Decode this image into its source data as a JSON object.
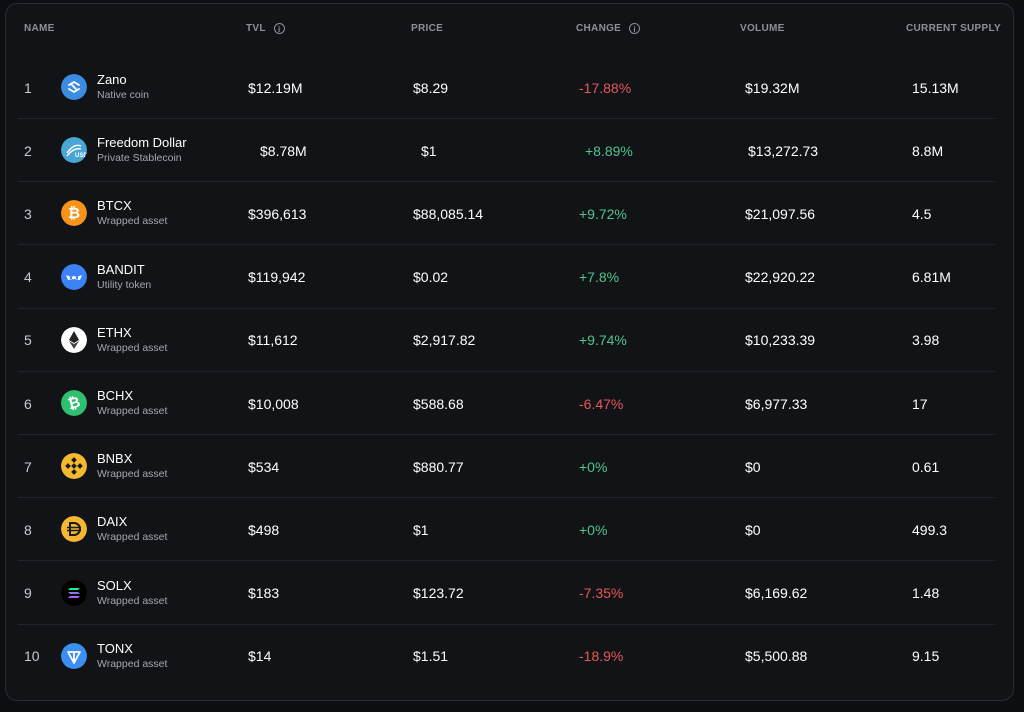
{
  "header": {
    "name": "NAME",
    "tvl": "TVL",
    "price": "PRICE",
    "change": "CHANGE",
    "volume": "VOLUME",
    "supply": "CURRENT SUPPLY",
    "info_glyph": "i"
  },
  "rows": [
    {
      "rank": "1",
      "name": "Zano",
      "type": "Native coin",
      "tvl": "$12.19M",
      "price": "$8.29",
      "change": "-17.88%",
      "volume": "$19.32M",
      "supply": "15.13M",
      "icon": "zano-icon",
      "color": "#3a8de0"
    },
    {
      "rank": "2",
      "name": "Freedom Dollar",
      "type": "Private Stablecoin",
      "tvl": "$8.78M",
      "price": "$1",
      "change": "+8.89%",
      "volume": "$13,272.73",
      "supply": "8.8M",
      "icon": "freedom-dollar-icon",
      "color": "#49a6d6"
    },
    {
      "rank": "3",
      "name": "BTCX",
      "type": "Wrapped asset",
      "tvl": "$396,613",
      "price": "$88,085.14",
      "change": "+9.72%",
      "volume": "$21,097.56",
      "supply": "4.5",
      "icon": "bitcoin-icon",
      "color": "#f7931a"
    },
    {
      "rank": "4",
      "name": "BANDIT",
      "type": "Utility token",
      "tvl": "$119,942",
      "price": "$0.02",
      "change": "+7.8%",
      "volume": "$22,920.22",
      "supply": "6.81M",
      "icon": "bandit-mask-icon",
      "color": "#3b82f6"
    },
    {
      "rank": "5",
      "name": "ETHX",
      "type": "Wrapped asset",
      "tvl": "$11,612",
      "price": "$2,917.82",
      "change": "+9.74%",
      "volume": "$10,233.39",
      "supply": "3.98",
      "icon": "ethereum-icon",
      "color": "#ffffff"
    },
    {
      "rank": "6",
      "name": "BCHX",
      "type": "Wrapped asset",
      "tvl": "$10,008",
      "price": "$588.68",
      "change": "-6.47%",
      "volume": "$6,977.33",
      "supply": "17",
      "icon": "bitcoin-cash-icon",
      "color": "#2fbf71"
    },
    {
      "rank": "7",
      "name": "BNBX",
      "type": "Wrapped asset",
      "tvl": "$534",
      "price": "$880.77",
      "change": "+0%",
      "volume": "$0",
      "supply": "0.61",
      "icon": "bnb-icon",
      "color": "#f3ba2f"
    },
    {
      "rank": "8",
      "name": "DAIX",
      "type": "Wrapped asset",
      "tvl": "$498",
      "price": "$1",
      "change": "+0%",
      "volume": "$0",
      "supply": "499.3",
      "icon": "dai-icon",
      "color": "#f4b731"
    },
    {
      "rank": "9",
      "name": "SOLX",
      "type": "Wrapped asset",
      "tvl": "$183",
      "price": "$123.72",
      "change": "-7.35%",
      "volume": "$6,169.62",
      "supply": "1.48",
      "icon": "solana-icon",
      "color": "#000000"
    },
    {
      "rank": "10",
      "name": "TONX",
      "type": "Wrapped asset",
      "tvl": "$14",
      "price": "$1.51",
      "change": "-18.9%",
      "volume": "$5,500.88",
      "supply": "9.15",
      "icon": "ton-icon",
      "color": "#3a8ff0"
    }
  ],
  "colors": {
    "negative": "#e5585a",
    "positive": "#4fc48f",
    "background": "#121317"
  }
}
